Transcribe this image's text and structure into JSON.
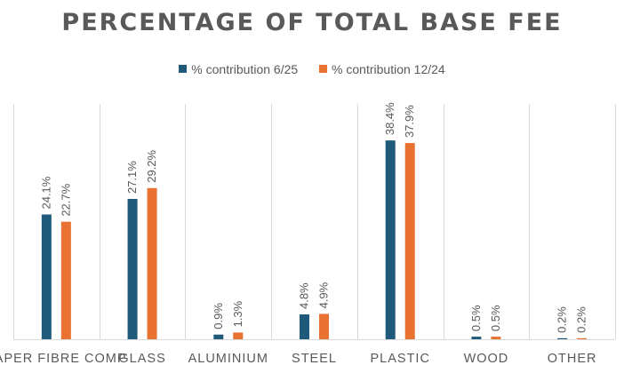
{
  "chart_data": {
    "type": "bar",
    "title": "PERCENTAGE OF TOTAL BASE FEE",
    "xlabel": "",
    "ylabel": "",
    "categories": [
      "PAPER FIBRE COMP",
      "GLASS",
      "ALUMINIUM",
      "STEEL",
      "PLASTIC",
      "WOOD",
      "OTHER"
    ],
    "series": [
      {
        "name": "% contribution 6/25",
        "color": "#1f5a7a",
        "values": [
          24.1,
          27.1,
          0.9,
          4.8,
          38.4,
          0.5,
          0.2
        ],
        "labels": [
          "24.1%",
          "27.1%",
          "0.9%",
          "4.8%",
          "38.4%",
          "0.5%",
          "0.2%"
        ]
      },
      {
        "name": "% contribution 12/24",
        "color": "#e97132",
        "values": [
          22.7,
          29.2,
          1.3,
          4.9,
          37.9,
          0.5,
          0.2
        ],
        "labels": [
          "22.7%",
          "29.2%",
          "1.3%",
          "4.9%",
          "37.9%",
          "0.5%",
          "0.2%"
        ]
      }
    ],
    "ylim": [
      0,
      50
    ],
    "grid": "vertical-category-separators",
    "legend": "top"
  }
}
